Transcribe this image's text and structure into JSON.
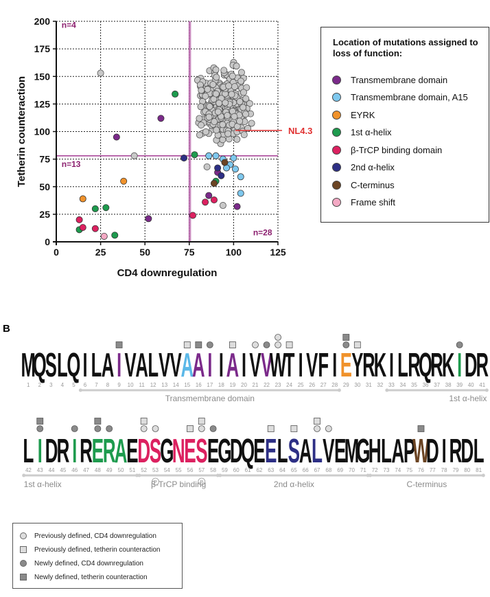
{
  "panel_b_label": "B",
  "chart_data": [
    {
      "type": "scatter",
      "xlabel": "CD4 downregulation",
      "ylabel": "Tetherin counteraction",
      "xlim": [
        0,
        125
      ],
      "ylim": [
        0,
        200
      ],
      "xticks": [
        0,
        25,
        50,
        75,
        100,
        125
      ],
      "yticks": [
        0,
        25,
        50,
        75,
        100,
        125,
        150,
        175,
        200
      ],
      "grid": true,
      "thresholds": {
        "x": 75,
        "y": 78
      },
      "quadrant_counts": [
        {
          "text": "n=4",
          "x": 3,
          "y": 194
        },
        {
          "text": "n=13",
          "x": 3,
          "y": 68
        },
        {
          "text": "n=28",
          "x": 111,
          "y": 6
        }
      ],
      "callout": {
        "text": "NL4.3",
        "x": 101,
        "y": 101
      },
      "legend_title": "Location of mutations assigned to loss of function:",
      "legend": [
        {
          "name": "Transmembrane domain",
          "color": "#7b2a8a"
        },
        {
          "name": "Transmembrane domain, A15",
          "color": "#7ec8ee"
        },
        {
          "name": "EYRK",
          "color": "#f0922b"
        },
        {
          "name": "1st α-helix",
          "color": "#1e9b4e"
        },
        {
          "name": "β-TrCP binding domain",
          "color": "#dc2160"
        },
        {
          "name": "2nd α-helix",
          "color": "#2d2f85"
        },
        {
          "name": "C-terminus",
          "color": "#6b4423"
        },
        {
          "name": "Frame shift",
          "color": "#f4a9c4"
        }
      ],
      "wt_color": "#c8c8c8",
      "wt_cloud": {
        "x_range": [
          76,
          114
        ],
        "y_range": [
          80,
          170
        ],
        "count": 320
      },
      "loss_of_function_points": [
        {
          "group": 0,
          "x": 34,
          "y": 95
        },
        {
          "group": 0,
          "x": 59,
          "y": 112
        },
        {
          "group": 0,
          "x": 52,
          "y": 21
        },
        {
          "group": 0,
          "x": 86,
          "y": 42
        },
        {
          "group": 0,
          "x": 91,
          "y": 63
        },
        {
          "group": 0,
          "x": 102,
          "y": 32
        },
        {
          "group": 1,
          "x": 86,
          "y": 78
        },
        {
          "group": 1,
          "x": 90,
          "y": 78
        },
        {
          "group": 1,
          "x": 94,
          "y": 75
        },
        {
          "group": 1,
          "x": 98,
          "y": 70
        },
        {
          "group": 1,
          "x": 101,
          "y": 66
        },
        {
          "group": 1,
          "x": 96,
          "y": 67
        },
        {
          "group": 1,
          "x": 100,
          "y": 76
        },
        {
          "group": 1,
          "x": 104,
          "y": 59
        },
        {
          "group": 1,
          "x": 104,
          "y": 44
        },
        {
          "group": 2,
          "x": 38,
          "y": 55
        },
        {
          "group": 2,
          "x": 15,
          "y": 39
        },
        {
          "group": 3,
          "x": 67,
          "y": 134
        },
        {
          "group": 3,
          "x": 78,
          "y": 79
        },
        {
          "group": 3,
          "x": 22,
          "y": 30
        },
        {
          "group": 3,
          "x": 28,
          "y": 31
        },
        {
          "group": 3,
          "x": 13,
          "y": 11
        },
        {
          "group": 3,
          "x": 33,
          "y": 6
        },
        {
          "group": 3,
          "x": 90,
          "y": 55
        },
        {
          "group": 4,
          "x": 13,
          "y": 20
        },
        {
          "group": 4,
          "x": 15,
          "y": 13
        },
        {
          "group": 4,
          "x": 22,
          "y": 12
        },
        {
          "group": 4,
          "x": 77,
          "y": 24
        },
        {
          "group": 4,
          "x": 84,
          "y": 36
        },
        {
          "group": 4,
          "x": 89,
          "y": 38
        },
        {
          "group": 5,
          "x": 72,
          "y": 76
        },
        {
          "group": 5,
          "x": 91,
          "y": 67
        },
        {
          "group": 5,
          "x": 93,
          "y": 60
        },
        {
          "group": 6,
          "x": 89,
          "y": 53
        },
        {
          "group": 6,
          "x": 95,
          "y": 72
        },
        {
          "group": 7,
          "x": 27,
          "y": 5
        }
      ],
      "extra_gray_points": [
        {
          "x": 25,
          "y": 153
        },
        {
          "x": 44,
          "y": 78
        },
        {
          "x": 94,
          "y": 33
        },
        {
          "x": 85,
          "y": 68
        }
      ]
    },
    {
      "type": "other",
      "title": "Sequence logo",
      "rows": [
        {
          "columns": [
            {
              "pos": 1,
              "letter": "M",
              "color": "#111"
            },
            {
              "pos": 2,
              "letter": "Q",
              "color": "#111"
            },
            {
              "pos": 3,
              "letter": "S",
              "color": "#111"
            },
            {
              "pos": 4,
              "letter": "L",
              "color": "#111"
            },
            {
              "pos": 5,
              "letter": "Q",
              "color": "#111"
            },
            {
              "pos": 6,
              "letter": "I",
              "color": "#111"
            },
            {
              "pos": 7,
              "letter": "L",
              "color": "#111"
            },
            {
              "pos": 8,
              "letter": "A",
              "color": "#111"
            },
            {
              "pos": 9,
              "letter": "I",
              "color": "#7b2a8a"
            },
            {
              "pos": 10,
              "letter": "V",
              "color": "#111"
            },
            {
              "pos": 11,
              "letter": "A",
              "color": "#111"
            },
            {
              "pos": 12,
              "letter": "L",
              "color": "#111"
            },
            {
              "pos": 13,
              "letter": "V",
              "color": "#111"
            },
            {
              "pos": 14,
              "letter": "V",
              "color": "#111"
            },
            {
              "pos": 15,
              "letter": "A",
              "color": "#5bb8e8"
            },
            {
              "pos": 16,
              "letter": "A",
              "color": "#7b2a8a"
            },
            {
              "pos": 17,
              "letter": "I",
              "color": "#7b2a8a"
            },
            {
              "pos": 18,
              "letter": "I",
              "color": "#111"
            },
            {
              "pos": 19,
              "letter": "A",
              "color": "#7b2a8a"
            },
            {
              "pos": 20,
              "letter": "I",
              "color": "#111"
            },
            {
              "pos": 21,
              "letter": "V",
              "color": "#111"
            },
            {
              "pos": 22,
              "letter": "V",
              "color": "#7b2a8a"
            },
            {
              "pos": 23,
              "letter": "W",
              "color": "#111"
            },
            {
              "pos": 24,
              "letter": "T",
              "color": "#111"
            },
            {
              "pos": 25,
              "letter": "I",
              "color": "#111"
            },
            {
              "pos": 26,
              "letter": "V",
              "color": "#111"
            },
            {
              "pos": 27,
              "letter": "F",
              "color": "#111"
            },
            {
              "pos": 28,
              "letter": "I",
              "color": "#111"
            },
            {
              "pos": 29,
              "letter": "E",
              "color": "#f0922b"
            },
            {
              "pos": 30,
              "letter": "Y",
              "color": "#111"
            },
            {
              "pos": 31,
              "letter": "R",
              "color": "#111"
            },
            {
              "pos": 32,
              "letter": "K",
              "color": "#111"
            },
            {
              "pos": 33,
              "letter": "I",
              "color": "#111"
            },
            {
              "pos": 34,
              "letter": "L",
              "color": "#111"
            },
            {
              "pos": 35,
              "letter": "R",
              "color": "#111"
            },
            {
              "pos": 36,
              "letter": "Q",
              "color": "#111"
            },
            {
              "pos": 37,
              "letter": "R",
              "color": "#111"
            },
            {
              "pos": 38,
              "letter": "K",
              "color": "#111"
            },
            {
              "pos": 39,
              "letter": "I",
              "color": "#1e9b4e"
            },
            {
              "pos": 40,
              "letter": "D",
              "color": "#111"
            },
            {
              "pos": 41,
              "letter": "R",
              "color": "#111"
            }
          ]
        },
        {
          "columns": [
            {
              "pos": 42,
              "letter": "L",
              "color": "#111"
            },
            {
              "pos": 43,
              "letter": "I",
              "color": "#1e9b4e"
            },
            {
              "pos": 44,
              "letter": "D",
              "color": "#111"
            },
            {
              "pos": 45,
              "letter": "R",
              "color": "#111"
            },
            {
              "pos": 46,
              "letter": "I",
              "color": "#1e9b4e"
            },
            {
              "pos": 47,
              "letter": "R",
              "color": "#111"
            },
            {
              "pos": 48,
              "letter": "E",
              "color": "#1e9b4e"
            },
            {
              "pos": 49,
              "letter": "R",
              "color": "#1e9b4e"
            },
            {
              "pos": 50,
              "letter": "A",
              "color": "#1e9b4e"
            },
            {
              "pos": 51,
              "letter": "E",
              "color": "#111"
            },
            {
              "pos": 52,
              "letter": "D",
              "color": "#dc2160"
            },
            {
              "pos": 53,
              "letter": "S",
              "color": "#dc2160"
            },
            {
              "pos": 54,
              "letter": "G",
              "color": "#111"
            },
            {
              "pos": 55,
              "letter": "N",
              "color": "#dc2160"
            },
            {
              "pos": 56,
              "letter": "E",
              "color": "#dc2160"
            },
            {
              "pos": 57,
              "letter": "S",
              "color": "#dc2160"
            },
            {
              "pos": 58,
              "letter": "E",
              "color": "#111"
            },
            {
              "pos": 59,
              "letter": "G",
              "color": "#111"
            },
            {
              "pos": 60,
              "letter": "D",
              "color": "#111"
            },
            {
              "pos": 61,
              "letter": "Q",
              "color": "#111"
            },
            {
              "pos": 62,
              "letter": "E",
              "color": "#111"
            },
            {
              "pos": 63,
              "letter": "E",
              "color": "#2d2f85"
            },
            {
              "pos": 64,
              "letter": "L",
              "color": "#111"
            },
            {
              "pos": 65,
              "letter": "S",
              "color": "#2d2f85"
            },
            {
              "pos": 66,
              "letter": "A",
              "color": "#111"
            },
            {
              "pos": 67,
              "letter": "L",
              "color": "#2d2f85"
            },
            {
              "pos": 68,
              "letter": "V",
              "color": "#111"
            },
            {
              "pos": 69,
              "letter": "E",
              "color": "#111"
            },
            {
              "pos": 70,
              "letter": "M",
              "color": "#111"
            },
            {
              "pos": 71,
              "letter": "G",
              "color": "#111"
            },
            {
              "pos": 72,
              "letter": "H",
              "color": "#111"
            },
            {
              "pos": 73,
              "letter": "L",
              "color": "#111"
            },
            {
              "pos": 74,
              "letter": "A",
              "color": "#111"
            },
            {
              "pos": 75,
              "letter": "P",
              "color": "#111"
            },
            {
              "pos": 76,
              "letter": "W",
              "color": "#6b4423"
            },
            {
              "pos": 77,
              "letter": "D",
              "color": "#111"
            },
            {
              "pos": 78,
              "letter": "I",
              "color": "#111"
            },
            {
              "pos": 79,
              "letter": "R",
              "color": "#111"
            },
            {
              "pos": 80,
              "letter": "D",
              "color": "#111"
            },
            {
              "pos": 81,
              "letter": "L",
              "color": "#111"
            }
          ]
        }
      ],
      "markers": [
        {
          "pos": 9,
          "kind": "newly_tetherin"
        },
        {
          "pos": 15,
          "kind": "prev_tetherin"
        },
        {
          "pos": 16,
          "kind": "newly_tetherin"
        },
        {
          "pos": 17,
          "kind": "newly_cd4"
        },
        {
          "pos": 19,
          "kind": "prev_tetherin"
        },
        {
          "pos": 21,
          "kind": "prev_cd4"
        },
        {
          "pos": 22,
          "kind": "newly_cd4"
        },
        {
          "pos": 23,
          "kind": "prev_cd4"
        },
        {
          "pos": 23,
          "kind": "prev_cd4"
        },
        {
          "pos": 24,
          "kind": "prev_tetherin"
        },
        {
          "pos": 29,
          "kind": "newly_cd4"
        },
        {
          "pos": 29,
          "kind": "newly_tetherin"
        },
        {
          "pos": 30,
          "kind": "prev_tetherin"
        },
        {
          "pos": 39,
          "kind": "newly_cd4"
        },
        {
          "pos": 43,
          "kind": "newly_cd4"
        },
        {
          "pos": 43,
          "kind": "newly_tetherin"
        },
        {
          "pos": 46,
          "kind": "newly_cd4"
        },
        {
          "pos": 48,
          "kind": "newly_cd4"
        },
        {
          "pos": 48,
          "kind": "newly_tetherin"
        },
        {
          "pos": 49,
          "kind": "newly_cd4"
        },
        {
          "pos": 52,
          "kind": "prev_cd4"
        },
        {
          "pos": 52,
          "kind": "prev_tetherin"
        },
        {
          "pos": 53,
          "kind": "prev_cd4"
        },
        {
          "pos": 56,
          "kind": "prev_tetherin"
        },
        {
          "pos": 57,
          "kind": "prev_cd4"
        },
        {
          "pos": 57,
          "kind": "prev_tetherin"
        },
        {
          "pos": 58,
          "kind": "newly_cd4"
        },
        {
          "pos": 63,
          "kind": "prev_tetherin"
        },
        {
          "pos": 65,
          "kind": "prev_tetherin"
        },
        {
          "pos": 67,
          "kind": "prev_cd4"
        },
        {
          "pos": 67,
          "kind": "prev_tetherin"
        },
        {
          "pos": 68,
          "kind": "prev_cd4"
        },
        {
          "pos": 76,
          "kind": "newly_tetherin"
        }
      ],
      "phospho_sites": [
        53,
        57
      ],
      "phospho_label": "P",
      "domains": [
        {
          "row": 0,
          "from": 6,
          "to": 28,
          "label": "Transmembrane domain"
        },
        {
          "row": 0,
          "from": 33,
          "to": 41,
          "label": "1st α-helix"
        },
        {
          "row": 1,
          "from": 42,
          "to": 51,
          "label": "1st α-helix"
        },
        {
          "row": 1,
          "from": 52,
          "to": 58,
          "label": "β-TrCP binding"
        },
        {
          "row": 1,
          "from": 59,
          "to": 71,
          "label": "2nd α-helix"
        },
        {
          "row": 1,
          "from": 72,
          "to": 81,
          "label": "C-terminus"
        }
      ]
    }
  ],
  "marker_key": [
    {
      "kind": "prev_cd4",
      "label": "Previously defined, CD4 downregulation"
    },
    {
      "kind": "prev_tetherin",
      "label": "Previously defined, tetherin counteraction"
    },
    {
      "kind": "newly_cd4",
      "label": "Newly defined, CD4 downregulation"
    },
    {
      "kind": "newly_tetherin",
      "label": "Newly defined, tetherin counteraction"
    }
  ],
  "colors": {
    "threshold_line": "#9c2a8a",
    "callout": "#e03030",
    "quadrant_label": "#8b1e6e",
    "domain_bar": "#cccccc",
    "domain_text": "#8a8a8a",
    "marker_light": "#dddddd",
    "marker_dark": "#8a8a8a"
  }
}
